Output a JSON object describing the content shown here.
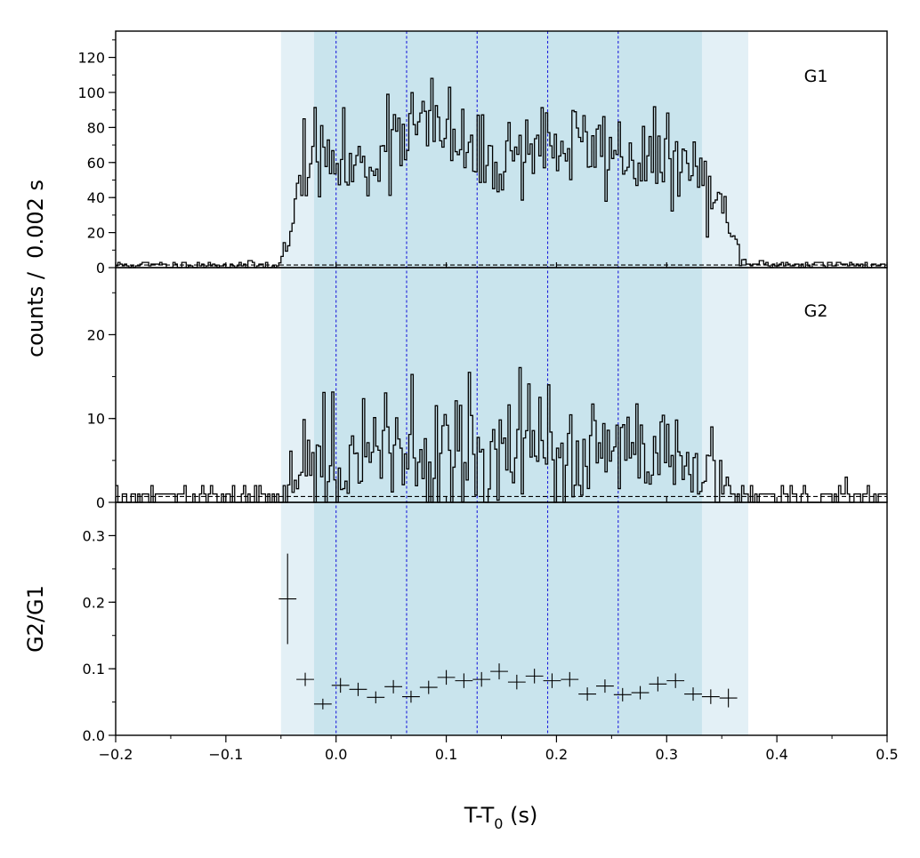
{
  "chart_data": {
    "type": "step-histogram",
    "xlabel_main": "T-T",
    "xlabel_sub": "0",
    "xlabel_unit": " (s)",
    "ylabel_counts": "counts /  0.002 s",
    "ylabel_ratio": "G2/G1",
    "xlim": [
      -0.2,
      0.5
    ],
    "x_ticks": [
      "−0.2",
      "−0.1",
      "0.0",
      "0.1",
      "0.2",
      "0.3",
      "0.4",
      "0.5"
    ],
    "bin_width": 0.002,
    "shaded_regions": {
      "outer": [
        -0.05,
        0.374
      ],
      "inner": [
        -0.02,
        0.332
      ],
      "outer_color": "#e3f0f6",
      "inner_color": "#c9e4ed"
    },
    "boundaries": [
      0.0,
      0.064,
      0.128,
      0.192,
      0.256
    ],
    "boundary_color": "#1f1fdc",
    "panels": [
      {
        "name": "G1",
        "ylim": [
          0,
          135
        ],
        "y_ticks": [
          "0",
          "20",
          "40",
          "60",
          "80",
          "100",
          "120"
        ],
        "background_level": 1.5,
        "profile": [
          {
            "x": -0.2,
            "y": 1.5
          },
          {
            "x": -0.052,
            "y": 1.5
          },
          {
            "x": -0.048,
            "y": 8
          },
          {
            "x": -0.04,
            "y": 18
          },
          {
            "x": -0.034,
            "y": 48
          },
          {
            "x": -0.028,
            "y": 68
          },
          {
            "x": -0.02,
            "y": 62
          },
          {
            "x": 0.0,
            "y": 60
          },
          {
            "x": 0.03,
            "y": 55
          },
          {
            "x": 0.045,
            "y": 75
          },
          {
            "x": 0.06,
            "y": 82
          },
          {
            "x": 0.09,
            "y": 80
          },
          {
            "x": 0.11,
            "y": 72
          },
          {
            "x": 0.13,
            "y": 60
          },
          {
            "x": 0.16,
            "y": 65
          },
          {
            "x": 0.18,
            "y": 72
          },
          {
            "x": 0.2,
            "y": 70
          },
          {
            "x": 0.24,
            "y": 68
          },
          {
            "x": 0.28,
            "y": 62
          },
          {
            "x": 0.31,
            "y": 60
          },
          {
            "x": 0.33,
            "y": 52
          },
          {
            "x": 0.345,
            "y": 38
          },
          {
            "x": 0.36,
            "y": 16
          },
          {
            "x": 0.372,
            "y": 2
          },
          {
            "x": 0.5,
            "y": 1.5
          }
        ],
        "noise": 0.17,
        "seed": 11
      },
      {
        "name": "G2",
        "ylim": [
          0,
          28
        ],
        "y_ticks": [
          "0",
          "10",
          "20"
        ],
        "background_level": 0.7,
        "profile": [
          {
            "x": -0.2,
            "y": 0.5
          },
          {
            "x": -0.052,
            "y": 0.5
          },
          {
            "x": -0.045,
            "y": 3
          },
          {
            "x": -0.03,
            "y": 6
          },
          {
            "x": 0.0,
            "y": 4.5
          },
          {
            "x": 0.06,
            "y": 6
          },
          {
            "x": 0.12,
            "y": 6
          },
          {
            "x": 0.2,
            "y": 6
          },
          {
            "x": 0.26,
            "y": 5.5
          },
          {
            "x": 0.33,
            "y": 4
          },
          {
            "x": 0.35,
            "y": 2
          },
          {
            "x": 0.365,
            "y": 0.6
          },
          {
            "x": 0.5,
            "y": 0.5
          }
        ],
        "noise": 0.55,
        "seed": 29
      }
    ],
    "ratio_panel": {
      "ylim": [
        0.0,
        0.35
      ],
      "y_ticks": [
        "0.0",
        "0.1",
        "0.2",
        "0.3"
      ],
      "points": [
        {
          "x": -0.044,
          "y": 0.205,
          "xerr": 0.008,
          "yerr": 0.068
        },
        {
          "x": -0.028,
          "y": 0.084,
          "xerr": 0.008,
          "yerr": 0.01
        },
        {
          "x": -0.012,
          "y": 0.047,
          "xerr": 0.008,
          "yerr": 0.008
        },
        {
          "x": 0.004,
          "y": 0.075,
          "xerr": 0.008,
          "yerr": 0.011
        },
        {
          "x": 0.02,
          "y": 0.069,
          "xerr": 0.008,
          "yerr": 0.01
        },
        {
          "x": 0.036,
          "y": 0.057,
          "xerr": 0.008,
          "yerr": 0.009
        },
        {
          "x": 0.052,
          "y": 0.073,
          "xerr": 0.008,
          "yerr": 0.01
        },
        {
          "x": 0.068,
          "y": 0.058,
          "xerr": 0.008,
          "yerr": 0.009
        },
        {
          "x": 0.084,
          "y": 0.072,
          "xerr": 0.008,
          "yerr": 0.01
        },
        {
          "x": 0.1,
          "y": 0.087,
          "xerr": 0.008,
          "yerr": 0.011
        },
        {
          "x": 0.116,
          "y": 0.082,
          "xerr": 0.008,
          "yerr": 0.011
        },
        {
          "x": 0.132,
          "y": 0.084,
          "xerr": 0.008,
          "yerr": 0.011
        },
        {
          "x": 0.148,
          "y": 0.096,
          "xerr": 0.008,
          "yerr": 0.012
        },
        {
          "x": 0.164,
          "y": 0.08,
          "xerr": 0.008,
          "yerr": 0.011
        },
        {
          "x": 0.18,
          "y": 0.089,
          "xerr": 0.008,
          "yerr": 0.011
        },
        {
          "x": 0.196,
          "y": 0.082,
          "xerr": 0.008,
          "yerr": 0.011
        },
        {
          "x": 0.212,
          "y": 0.084,
          "xerr": 0.008,
          "yerr": 0.011
        },
        {
          "x": 0.228,
          "y": 0.062,
          "xerr": 0.008,
          "yerr": 0.01
        },
        {
          "x": 0.244,
          "y": 0.074,
          "xerr": 0.008,
          "yerr": 0.01
        },
        {
          "x": 0.26,
          "y": 0.061,
          "xerr": 0.008,
          "yerr": 0.01
        },
        {
          "x": 0.276,
          "y": 0.064,
          "xerr": 0.008,
          "yerr": 0.01
        },
        {
          "x": 0.292,
          "y": 0.077,
          "xerr": 0.008,
          "yerr": 0.011
        },
        {
          "x": 0.308,
          "y": 0.082,
          "xerr": 0.008,
          "yerr": 0.011
        },
        {
          "x": 0.324,
          "y": 0.062,
          "xerr": 0.008,
          "yerr": 0.01
        },
        {
          "x": 0.34,
          "y": 0.058,
          "xerr": 0.008,
          "yerr": 0.011
        },
        {
          "x": 0.356,
          "y": 0.056,
          "xerr": 0.008,
          "yerr": 0.014
        }
      ]
    },
    "grid": false,
    "legend": "none"
  }
}
